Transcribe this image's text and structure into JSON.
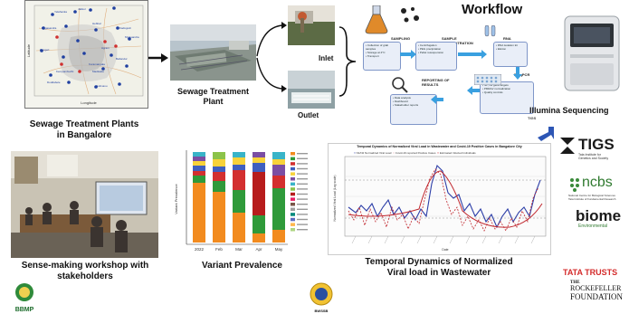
{
  "map": {
    "caption": "Sewage Treatment Plants\nin Bangalore",
    "axis_x": "Longitude",
    "axis_y": "Latitude",
    "places": [
      "Yelahanka",
      "Jakkur",
      "Hebbal",
      "Kadugodi",
      "Kengeri",
      "Mylasandra",
      "Bellandur",
      "Koramangala",
      "Madiwala",
      "Hulimavu",
      "Kempambudhi",
      "Nagasandra",
      "Doddabele",
      "Agram"
    ]
  },
  "stp": {
    "caption": "Sewage Treatment\nPlant",
    "inlet": "Inlet",
    "outlet": "Outlet"
  },
  "workflow": {
    "title": "Workflow",
    "steps": [
      "SAMPLING",
      "SAMPLE CONCENTRATION",
      "RNA EXTRACTION",
      "RT-qPCR",
      "REPORTING OF RESULTS"
    ],
    "tigs_small": "TIGS"
  },
  "sequencing": {
    "caption": "Illumina Sequencing"
  },
  "workshop": {
    "caption": "Sense-making workshop with\nstakeholders"
  },
  "variant": {
    "caption": "Variant Prevalence",
    "ylabel": "Variant Prevalence",
    "categories": [
      "2022",
      "Feb",
      "Mar",
      "Apr",
      "May"
    ]
  },
  "viral": {
    "caption": "Temporal Dynamics of Normalized\nViral load in Wastewater",
    "chart_title": "Temporal Dynamics of Normalized Viral Load in Wastewater and Covid-19 Positive Cases in Bangalore City",
    "legend": [
      "N1/N2 Normalized Viral Load",
      "Covid-19 reported Positive Cases",
      "Estimated Infected Individuals"
    ],
    "ylabel": "Normalized Viral Load (Log scale)",
    "xlabel": "Date"
  },
  "logos": {
    "bbmp": "BBMP",
    "bwssb": "BWSSB",
    "tigs": "TIGS",
    "tigs_sub": "Tata Institute for\nGenetics and Society",
    "ncbs": "ncbs",
    "ncbs_sub": "National Centre for Biological Sciences\nTata Institute of Fundamental Research",
    "biome_1": "biome",
    "biome_2": "Environmental",
    "tata_trusts": "TATA TRUSTS",
    "rockefeller_1": "THE",
    "rockefeller_2": "ROCKEFELLER",
    "rockefeller_3": "FOUNDATION"
  },
  "colors": {
    "accent_blue": "#1f3fa0",
    "stp_red": "#d03030",
    "line_red": "#c0262d",
    "line_blue": "#2d3fa8"
  }
}
